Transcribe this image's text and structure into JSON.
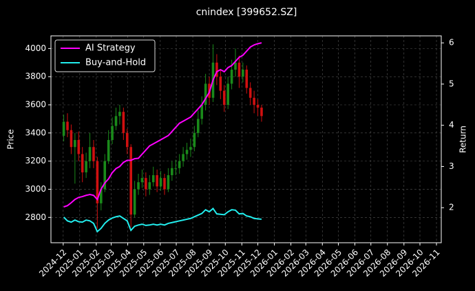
{
  "chart_data": {
    "type": "candlestick",
    "title": "cnindex [399652.SZ]",
    "ylabel": "Price",
    "y2label": "Return",
    "x": [
      "2024-12-02",
      "2024-12-09",
      "2024-12-16",
      "2024-12-23",
      "2024-12-30",
      "2025-01-06",
      "2025-01-13",
      "2025-01-20",
      "2025-01-27",
      "2025-02-03",
      "2025-02-10",
      "2025-02-17",
      "2025-02-24",
      "2025-03-03",
      "2025-03-10",
      "2025-03-17",
      "2025-03-24",
      "2025-03-31",
      "2025-04-07",
      "2025-04-14",
      "2025-04-21",
      "2025-04-28",
      "2025-05-05",
      "2025-05-12",
      "2025-05-19",
      "2025-05-26",
      "2025-06-02",
      "2025-06-09",
      "2025-06-16",
      "2025-06-23",
      "2025-06-30",
      "2025-07-07",
      "2025-07-14",
      "2025-07-21",
      "2025-07-28",
      "2025-08-04",
      "2025-08-11",
      "2025-08-18",
      "2025-08-25",
      "2025-09-01",
      "2025-09-08",
      "2025-09-15",
      "2025-09-22",
      "2025-09-29",
      "2025-10-06",
      "2025-10-13",
      "2025-10-20",
      "2025-10-27",
      "2025-11-03",
      "2025-11-10",
      "2025-11-17",
      "2025-11-24",
      "2025-12-01",
      "2025-12-08"
    ],
    "open": [
      3380,
      3480,
      3420,
      3300,
      3350,
      3250,
      3120,
      3200,
      3300,
      3200,
      2900,
      3000,
      3200,
      3350,
      3450,
      3520,
      3550,
      3400,
      3300,
      2820,
      3000,
      3050,
      3080,
      3000,
      3050,
      3100,
      3020,
      3080,
      3000,
      3100,
      3150,
      3150,
      3200,
      3250,
      3280,
      3300,
      3400,
      3500,
      3600,
      3750,
      3650,
      3900,
      3800,
      3700,
      3600,
      3750,
      3850,
      3900,
      3800,
      3850,
      3720,
      3650,
      3600,
      3580
    ],
    "high": [
      3530,
      3540,
      3460,
      3400,
      3410,
      3300,
      3260,
      3400,
      3350,
      3230,
      3050,
      3250,
      3420,
      3510,
      3580,
      3600,
      3580,
      3430,
      3320,
      3060,
      3110,
      3140,
      3120,
      3100,
      3160,
      3140,
      3130,
      3110,
      3150,
      3200,
      3210,
      3250,
      3300,
      3330,
      3360,
      3450,
      3560,
      3660,
      3820,
      3800,
      4030,
      3960,
      3850,
      3740,
      3800,
      3920,
      4000,
      3950,
      3900,
      3880,
      3760,
      3700,
      3640,
      3600
    ],
    "low": [
      3340,
      3370,
      3250,
      3040,
      3200,
      3050,
      3080,
      3150,
      3150,
      2720,
      2850,
      2980,
      3180,
      3320,
      3420,
      3460,
      3350,
      3250,
      2730,
      2800,
      2960,
      3010,
      2950,
      2960,
      3020,
      2980,
      2990,
      2960,
      2980,
      3060,
      3100,
      3110,
      3160,
      3210,
      3230,
      3270,
      3370,
      3460,
      3560,
      3600,
      3620,
      3740,
      3640,
      3550,
      3570,
      3710,
      3800,
      3720,
      3760,
      3680,
      3600,
      3540,
      3520,
      3480
    ],
    "close": [
      3480,
      3420,
      3300,
      3350,
      3250,
      3120,
      3200,
      3300,
      3200,
      2900,
      3000,
      3200,
      3350,
      3450,
      3520,
      3550,
      3400,
      3300,
      2820,
      3000,
      3050,
      3080,
      3000,
      3050,
      3100,
      3020,
      3080,
      3000,
      3100,
      3150,
      3150,
      3200,
      3250,
      3280,
      3300,
      3400,
      3500,
      3600,
      3750,
      3650,
      3900,
      3800,
      3700,
      3600,
      3750,
      3850,
      3900,
      3800,
      3850,
      3720,
      3650,
      3600,
      3580,
      3520
    ],
    "up_color": "#1a8a1a",
    "down_color": "#d01010",
    "series": [
      {
        "name": "AI Strategy",
        "color": "#ff00ff",
        "axis": "y2",
        "values": [
          2.02,
          2.05,
          2.12,
          2.2,
          2.25,
          2.27,
          2.3,
          2.32,
          2.3,
          2.2,
          2.45,
          2.6,
          2.7,
          2.85,
          2.95,
          3.0,
          3.1,
          3.15,
          3.15,
          3.19,
          3.2,
          3.3,
          3.4,
          3.5,
          3.55,
          3.6,
          3.65,
          3.7,
          3.75,
          3.85,
          3.95,
          4.05,
          4.1,
          4.15,
          4.2,
          4.3,
          4.4,
          4.5,
          4.65,
          4.8,
          5.1,
          5.3,
          5.35,
          5.3,
          5.4,
          5.45,
          5.55,
          5.65,
          5.7,
          5.8,
          5.9,
          5.95,
          5.98,
          6.0
        ]
      },
      {
        "name": "Buy-and-Hold",
        "color": "#22eeee",
        "axis": "y2",
        "values": [
          1.77,
          1.68,
          1.65,
          1.7,
          1.66,
          1.65,
          1.7,
          1.68,
          1.62,
          1.42,
          1.5,
          1.62,
          1.7,
          1.75,
          1.78,
          1.8,
          1.74,
          1.68,
          1.45,
          1.55,
          1.58,
          1.6,
          1.57,
          1.58,
          1.6,
          1.58,
          1.6,
          1.58,
          1.62,
          1.64,
          1.66,
          1.68,
          1.7,
          1.72,
          1.74,
          1.78,
          1.82,
          1.86,
          1.95,
          1.9,
          1.98,
          1.85,
          1.84,
          1.83,
          1.9,
          1.95,
          1.94,
          1.85,
          1.86,
          1.8,
          1.78,
          1.74,
          1.73,
          1.72
        ]
      }
    ],
    "xlim": [
      "2024-11-08",
      "2026-11-10"
    ],
    "xticks": [
      "2024-12",
      "2025-01",
      "2025-02",
      "2025-03",
      "2025-04",
      "2025-05",
      "2025-06",
      "2025-07",
      "2025-08",
      "2025-09",
      "2025-10",
      "2025-11",
      "2025-12",
      "2026-01",
      "2026-02",
      "2026-03",
      "2026-04",
      "2026-05",
      "2026-06",
      "2026-07",
      "2026-08",
      "2026-09",
      "2026-10",
      "2026-11"
    ],
    "ylim": [
      2620,
      4090
    ],
    "yticks": [
      2800,
      3000,
      3200,
      3400,
      3600,
      3800,
      4000
    ],
    "y2lim": [
      1.15,
      6.17
    ],
    "y2ticks": [
      2,
      3,
      4,
      5,
      6
    ],
    "grid": true,
    "legend": "upper left"
  }
}
